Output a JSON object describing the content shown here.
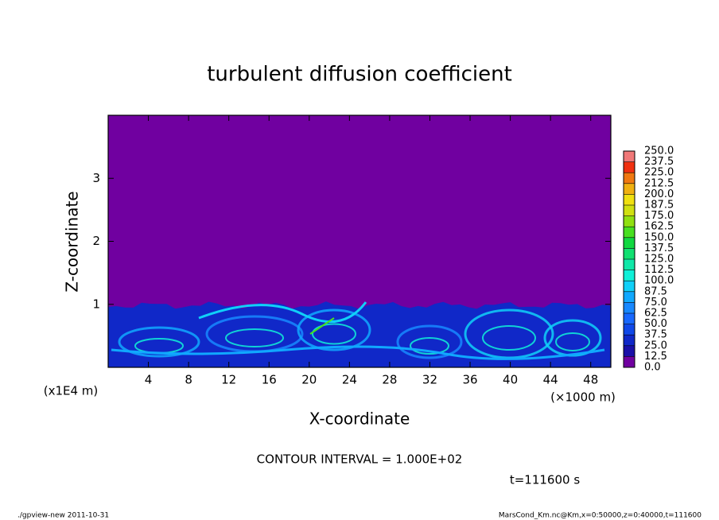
{
  "chart_data": {
    "type": "contour",
    "title": "turbulent diffusion coefficient",
    "x_label": "X-coordinate",
    "y_label": "Z-coordinate",
    "x_unit": "(×1000 m)",
    "y_unit": "(x1E4 m)",
    "xlim": [
      0,
      50
    ],
    "xticks": [
      4,
      8,
      12,
      16,
      20,
      24,
      28,
      32,
      36,
      40,
      44,
      48
    ],
    "ylim": [
      0,
      4
    ],
    "yticks": [
      1,
      2,
      3
    ],
    "colorbar": {
      "levels": [
        {
          "value": 0,
          "label": "0.0"
        },
        {
          "value": 12.5,
          "label": "12.5"
        },
        {
          "value": 25,
          "label": "25.0"
        },
        {
          "value": 37.5,
          "label": "37.5"
        },
        {
          "value": 50,
          "label": "50.0"
        },
        {
          "value": 62.5,
          "label": "62.5"
        },
        {
          "value": 75,
          "label": "75.0"
        },
        {
          "value": 87.5,
          "label": "87.5"
        },
        {
          "value": 100,
          "label": "100.0"
        },
        {
          "value": 112.5,
          "label": "112.5"
        },
        {
          "value": 125,
          "label": "125.0"
        },
        {
          "value": 137.5,
          "label": "137.5"
        },
        {
          "value": 150,
          "label": "150.0"
        },
        {
          "value": 162.5,
          "label": "162.5"
        },
        {
          "value": 175,
          "label": "175.0"
        },
        {
          "value": 187.5,
          "label": "187.5"
        },
        {
          "value": 200,
          "label": "200.0"
        },
        {
          "value": 212.5,
          "label": "212.5"
        },
        {
          "value": 225,
          "label": "225.0"
        },
        {
          "value": 237.5,
          "label": "237.5"
        },
        {
          "value": 250,
          "label": "250.0"
        }
      ],
      "colors": [
        "#7000a0",
        "#1a10a8",
        "#1028c8",
        "#1048e8",
        "#1868ff",
        "#1888ff",
        "#10a8ff",
        "#10d0f8",
        "#10f0d8",
        "#10e8a8",
        "#10e070",
        "#10d840",
        "#48e020",
        "#90e010",
        "#d0e010",
        "#f0e010",
        "#f0b010",
        "#f07810",
        "#f03010",
        "#f07878"
      ]
    },
    "contour_interval": "CONTOUR INTERVAL = 1.000E+02",
    "time": "t=111600 s",
    "footer_left": "./gpview-new  2011-10-31",
    "footer_right": "MarsCond_Km.nc@Km,x=0:50000,z=0:40000,t=111600"
  }
}
